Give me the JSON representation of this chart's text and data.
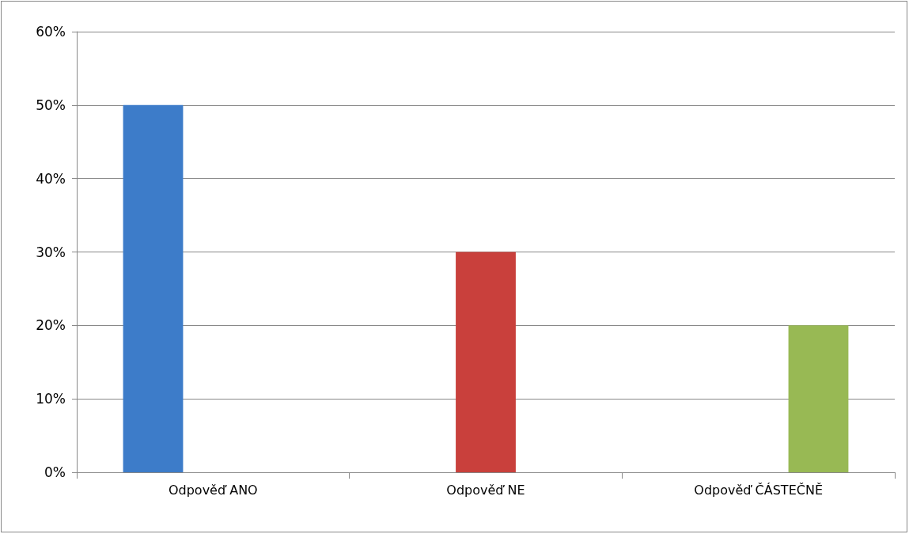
{
  "chart_data": {
    "type": "bar",
    "categories": [
      "Odpověď ANO",
      "Odpověď NE",
      "Odpověď ČÁSTEČNĚ"
    ],
    "series": [
      {
        "color": "#3d7cc9",
        "values": [
          50,
          null,
          null
        ]
      },
      {
        "color": "#c9403c",
        "values": [
          null,
          30,
          null
        ]
      },
      {
        "color": "#98b954",
        "values": [
          null,
          null,
          20
        ]
      }
    ],
    "ylim": [
      0,
      60
    ],
    "yticks": [
      {
        "value": 0,
        "label": "0%"
      },
      {
        "value": 10,
        "label": "10%"
      },
      {
        "value": 20,
        "label": "20%"
      },
      {
        "value": 30,
        "label": "30%"
      },
      {
        "value": 40,
        "label": "40%"
      },
      {
        "value": 50,
        "label": "50%"
      },
      {
        "value": 60,
        "label": "60%"
      }
    ],
    "grid": "y"
  }
}
